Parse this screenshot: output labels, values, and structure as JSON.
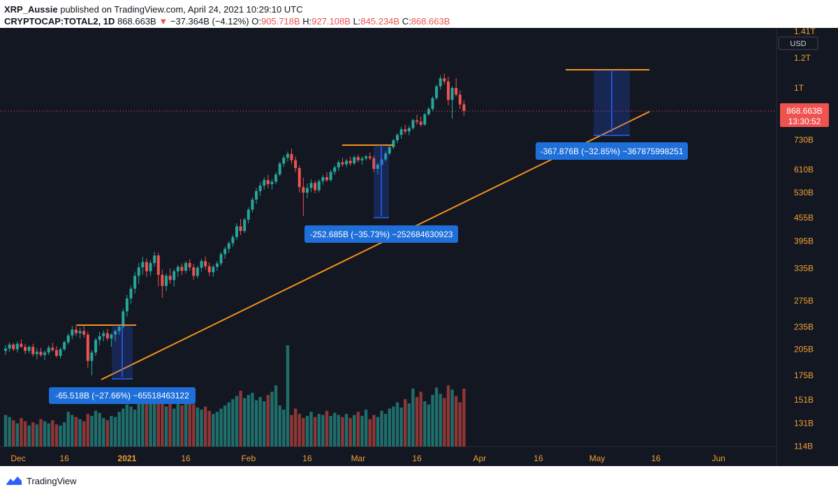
{
  "header": {
    "author": "XRP_Aussie",
    "published_text": "published on TradingView.com, April 24, 2021 10:29:10 UTC",
    "symbol": "CRYPTOCAP:TOTAL2, 1D",
    "last": "868.663B",
    "arrow": "▼",
    "change": "−37.364B (−4.12%)",
    "o_label": "O:",
    "o_value": "905.718B",
    "h_label": "H:",
    "h_value": "927.108B",
    "l_label": "L:",
    "l_value": "845.234B",
    "c_label": "C:",
    "c_value": "868.663B"
  },
  "footer": {
    "brand": "TradingView"
  },
  "colors": {
    "background": "#131722",
    "up": "#26a69a",
    "down": "#ef5350",
    "volume_up": "#1f6e6b",
    "volume_down": "#8f3636",
    "trendline": "#f7931a",
    "measure": "#2962ff",
    "label_bg": "#1e6fd9",
    "axis_text": "#f0a030",
    "price_label_bg": "#ef5350"
  },
  "chart_data": {
    "type": "candlestick",
    "scale": "log",
    "currency": "USD",
    "x_labels": [
      "Dec",
      "16",
      "2021",
      "16",
      "Feb",
      "16",
      "Mar",
      "16",
      "Apr",
      "16",
      "May",
      "16",
      "Jun"
    ],
    "y_labels": [
      "1.41T",
      "1.2T",
      "1T",
      "730B",
      "610B",
      "530B",
      "455B",
      "395B",
      "335B",
      "275B",
      "235B",
      "205B",
      "175B",
      "151B",
      "131B",
      "114B"
    ],
    "current_price_label": "868.663B",
    "countdown": "13:30:52",
    "ohlc_start_date": "2020-12-01",
    "ohlc": [
      [
        203,
        210,
        198,
        206
      ],
      [
        206,
        214,
        202,
        211
      ],
      [
        211,
        213,
        203,
        205
      ],
      [
        205,
        215,
        201,
        212
      ],
      [
        212,
        218,
        207,
        208
      ],
      [
        208,
        212,
        199,
        203
      ],
      [
        203,
        210,
        200,
        208
      ],
      [
        208,
        212,
        196,
        199
      ],
      [
        199,
        206,
        193,
        202
      ],
      [
        202,
        207,
        196,
        198
      ],
      [
        198,
        204,
        192,
        201
      ],
      [
        201,
        210,
        198,
        207
      ],
      [
        207,
        213,
        202,
        204
      ],
      [
        204,
        209,
        195,
        197
      ],
      [
        197,
        207,
        194,
        205
      ],
      [
        205,
        216,
        203,
        214
      ],
      [
        214,
        226,
        211,
        223
      ],
      [
        223,
        236,
        218,
        231
      ],
      [
        231,
        238,
        222,
        226
      ],
      [
        226,
        234,
        219,
        229
      ],
      [
        229,
        237,
        220,
        224
      ],
      [
        224,
        228,
        183,
        191
      ],
      [
        191,
        204,
        175,
        201
      ],
      [
        201,
        220,
        197,
        217
      ],
      [
        217,
        228,
        210,
        222
      ],
      [
        222,
        230,
        215,
        226
      ],
      [
        226,
        232,
        216,
        219
      ],
      [
        219,
        226,
        208,
        224
      ],
      [
        224,
        231,
        215,
        229
      ],
      [
        229,
        238,
        224,
        235
      ],
      [
        235,
        262,
        233,
        258
      ],
      [
        258,
        285,
        250,
        279
      ],
      [
        279,
        302,
        270,
        296
      ],
      [
        296,
        328,
        288,
        320
      ],
      [
        320,
        346,
        305,
        337
      ],
      [
        337,
        359,
        322,
        348
      ],
      [
        348,
        356,
        318,
        329
      ],
      [
        329,
        352,
        320,
        346
      ],
      [
        346,
        370,
        338,
        362
      ],
      [
        362,
        368,
        300,
        322
      ],
      [
        322,
        332,
        280,
        301
      ],
      [
        301,
        325,
        292,
        320
      ],
      [
        320,
        335,
        305,
        312
      ],
      [
        312,
        334,
        300,
        329
      ],
      [
        329,
        342,
        318,
        338
      ],
      [
        338,
        345,
        322,
        330
      ],
      [
        330,
        350,
        325,
        346
      ],
      [
        346,
        354,
        330,
        337
      ],
      [
        337,
        344,
        312,
        320
      ],
      [
        320,
        340,
        315,
        336
      ],
      [
        336,
        355,
        328,
        350
      ],
      [
        350,
        360,
        332,
        339
      ],
      [
        339,
        347,
        320,
        327
      ],
      [
        327,
        342,
        318,
        338
      ],
      [
        338,
        350,
        330,
        345
      ],
      [
        345,
        370,
        340,
        365
      ],
      [
        365,
        382,
        355,
        377
      ],
      [
        377,
        395,
        368,
        390
      ],
      [
        390,
        410,
        382,
        405
      ],
      [
        405,
        440,
        398,
        432
      ],
      [
        432,
        452,
        410,
        420
      ],
      [
        420,
        455,
        415,
        450
      ],
      [
        450,
        485,
        440,
        478
      ],
      [
        478,
        515,
        470,
        508
      ],
      [
        508,
        545,
        495,
        535
      ],
      [
        535,
        565,
        520,
        553
      ],
      [
        553,
        582,
        540,
        572
      ],
      [
        572,
        590,
        545,
        558
      ],
      [
        558,
        575,
        540,
        566
      ],
      [
        566,
        600,
        558,
        592
      ],
      [
        592,
        640,
        585,
        632
      ],
      [
        632,
        665,
        620,
        655
      ],
      [
        655,
        680,
        640,
        670
      ],
      [
        670,
        692,
        630,
        645
      ],
      [
        645,
        660,
        600,
        615
      ],
      [
        615,
        625,
        530,
        548
      ],
      [
        548,
        580,
        460,
        530
      ],
      [
        530,
        560,
        512,
        545
      ],
      [
        545,
        574,
        532,
        562
      ],
      [
        562,
        570,
        528,
        538
      ],
      [
        538,
        575,
        530,
        568
      ],
      [
        568,
        590,
        555,
        582
      ],
      [
        582,
        600,
        565,
        572
      ],
      [
        572,
        608,
        566,
        601
      ],
      [
        601,
        625,
        590,
        618
      ],
      [
        618,
        645,
        605,
        637
      ],
      [
        637,
        655,
        620,
        629
      ],
      [
        629,
        650,
        618,
        643
      ],
      [
        643,
        660,
        624,
        633
      ],
      [
        633,
        664,
        626,
        657
      ],
      [
        657,
        668,
        636,
        645
      ],
      [
        645,
        661,
        628,
        652
      ],
      [
        652,
        666,
        644,
        660
      ],
      [
        660,
        676,
        645,
        653
      ],
      [
        653,
        663,
        600,
        612
      ],
      [
        612,
        635,
        592,
        628
      ],
      [
        628,
        655,
        620,
        648
      ],
      [
        648,
        680,
        640,
        672
      ],
      [
        672,
        705,
        665,
        698
      ],
      [
        698,
        735,
        690,
        728
      ],
      [
        728,
        760,
        715,
        752
      ],
      [
        752,
        790,
        735,
        778
      ],
      [
        778,
        800,
        755,
        768
      ],
      [
        768,
        795,
        750,
        784
      ],
      [
        784,
        830,
        775,
        822
      ],
      [
        822,
        850,
        800,
        815
      ],
      [
        815,
        840,
        790,
        800
      ],
      [
        800,
        860,
        795,
        852
      ],
      [
        852,
        890,
        845,
        880
      ],
      [
        880,
        950,
        870,
        940
      ],
      [
        940,
        1020,
        930,
        1010
      ],
      [
        1010,
        1080,
        990,
        1060
      ],
      [
        1060,
        1090,
        1020,
        1040
      ],
      [
        1040,
        1070,
        900,
        930
      ],
      [
        930,
        1010,
        830,
        1000
      ],
      [
        1000,
        1060,
        950,
        960
      ],
      [
        960,
        985,
        880,
        905
      ],
      [
        905,
        927,
        845,
        869
      ]
    ],
    "volume_start_date": "2020-12-01",
    "volume": [
      30,
      28,
      25,
      22,
      27,
      24,
      20,
      23,
      21,
      26,
      24,
      22,
      25,
      21,
      20,
      23,
      33,
      30,
      28,
      26,
      24,
      31,
      29,
      34,
      32,
      27,
      25,
      29,
      28,
      33,
      36,
      40,
      38,
      35,
      43,
      45,
      50,
      47,
      41,
      48,
      46,
      38,
      44,
      36,
      42,
      39,
      47,
      45,
      40,
      37,
      35,
      38,
      34,
      31,
      33,
      36,
      39,
      42,
      45,
      48,
      53,
      46,
      49,
      51,
      44,
      47,
      43,
      49,
      52,
      58,
      39,
      35,
      96,
      30,
      36,
      31,
      27,
      29,
      33,
      28,
      31,
      30,
      34,
      29,
      32,
      30,
      28,
      31,
      27,
      30,
      33,
      29,
      35,
      26,
      30,
      28,
      34,
      31,
      36,
      38,
      42,
      37,
      45,
      41,
      55,
      47,
      52,
      43,
      40,
      49,
      56,
      50,
      46,
      58,
      54,
      48,
      42,
      55
    ],
    "annotations": [
      {
        "text": "-65.518B (−27.66%) −65518463122"
      },
      {
        "text": "-252.685B (−35.73%) −252684630923"
      },
      {
        "text": "-367.876B (−32.85%) −367875998251"
      }
    ]
  }
}
